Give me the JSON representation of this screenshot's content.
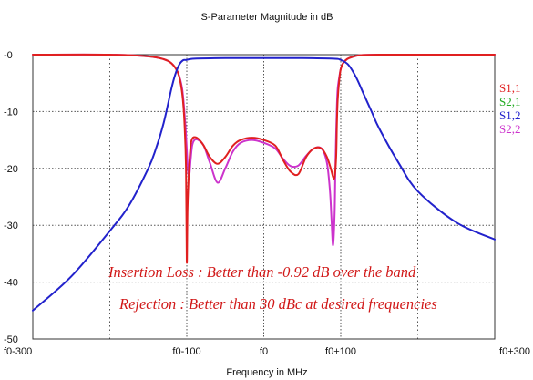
{
  "chart_data": {
    "type": "line",
    "title": "S-Parameter Magnitude in dB",
    "xlabel": "Frequency in MHz",
    "ylabel": "",
    "xlim": [
      -300,
      300
    ],
    "ylim": [
      -50,
      0
    ],
    "x_ticks": [
      {
        "value": -300,
        "label": "f0-300"
      },
      {
        "value": -100,
        "label": "f0-100"
      },
      {
        "value": 0,
        "label": "f0"
      },
      {
        "value": 100,
        "label": "f0+100"
      },
      {
        "value": 300,
        "label": "f0+300"
      }
    ],
    "y_ticks": [
      {
        "value": 0,
        "label": "-0"
      },
      {
        "value": -10,
        "label": "-10"
      },
      {
        "value": -20,
        "label": "-20"
      },
      {
        "value": -30,
        "label": "-30"
      },
      {
        "value": -40,
        "label": "-40"
      },
      {
        "value": -50,
        "label": "-50"
      }
    ],
    "grid": true,
    "legend_position": "right",
    "series": [
      {
        "name": "S1,1",
        "color": "#e02020",
        "x": [
          -300,
          -200,
          -150,
          -130,
          -120,
          -112,
          -108,
          -105,
          -103,
          -101,
          -100,
          -99,
          -97,
          -95,
          -93,
          -90,
          -85,
          -78,
          -70,
          -60,
          -50,
          -40,
          -30,
          -15,
          0,
          15,
          25,
          35,
          45,
          55,
          65,
          75,
          82,
          87,
          90,
          92,
          94,
          95,
          96,
          98,
          100,
          103,
          108,
          115,
          125,
          150,
          200,
          300
        ],
        "y": [
          0,
          0,
          -0.3,
          -0.8,
          -1.5,
          -3,
          -5,
          -8,
          -12,
          -20,
          -36.5,
          -27,
          -20,
          -16,
          -14.8,
          -14.5,
          -14.8,
          -16,
          -18,
          -19.2,
          -18,
          -16,
          -15,
          -14.6,
          -15,
          -16,
          -18.5,
          -20.6,
          -21,
          -18,
          -16.5,
          -16.5,
          -18,
          -20,
          -21.5,
          -21.5,
          -18,
          -12,
          -8,
          -4.5,
          -2.5,
          -1.5,
          -0.8,
          -0.4,
          -0.1,
          0,
          0,
          0
        ]
      },
      {
        "name": "S2,1",
        "color": "#22aa22",
        "x": [],
        "y": []
      },
      {
        "name": "S1,2",
        "color": "#2222cc",
        "x": [
          -300,
          -250,
          -200,
          -175,
          -150,
          -140,
          -130,
          -120,
          -115,
          -110,
          -105,
          -100,
          -90,
          -50,
          0,
          50,
          90,
          100,
          110,
          120,
          130,
          140,
          150,
          175,
          200,
          250,
          300
        ],
        "y": [
          -45,
          -39,
          -31,
          -26.5,
          -20,
          -16.5,
          -12,
          -6,
          -3.5,
          -1.8,
          -1,
          -0.92,
          -0.7,
          -0.6,
          -0.6,
          -0.6,
          -0.7,
          -0.92,
          -1.8,
          -4,
          -7,
          -10,
          -13,
          -19,
          -24,
          -29.5,
          -32.5
        ]
      },
      {
        "name": "S2,2",
        "color": "#cc33cc",
        "x": [
          -300,
          -200,
          -150,
          -130,
          -120,
          -112,
          -106,
          -102,
          -99,
          -97,
          -95,
          -93,
          -90,
          -85,
          -78,
          -70,
          -60,
          -50,
          -40,
          -30,
          -15,
          0,
          15,
          25,
          35,
          45,
          55,
          65,
          75,
          82,
          86,
          88,
          90,
          92,
          93,
          94,
          95,
          96,
          98,
          100,
          103,
          108,
          115,
          125,
          150,
          200,
          300
        ],
        "y": [
          0,
          0,
          -0.3,
          -0.8,
          -1.5,
          -3,
          -6,
          -12,
          -19,
          -21.5,
          -18.5,
          -16,
          -15,
          -15,
          -16,
          -19,
          -22.5,
          -20,
          -17,
          -15.5,
          -15,
          -15.5,
          -16.5,
          -18.3,
          -19.6,
          -19.5,
          -17.8,
          -16.5,
          -16.5,
          -19,
          -24,
          -29,
          -33.5,
          -28,
          -20,
          -14,
          -9,
          -6,
          -4,
          -2.5,
          -1.5,
          -0.8,
          -0.4,
          -0.1,
          0,
          0,
          0
        ]
      }
    ],
    "annotations": [
      "Insertion Loss : Better than -0.92 dB over the band",
      "Rejection : Better than 30 dBc at desired  frequencies"
    ]
  }
}
